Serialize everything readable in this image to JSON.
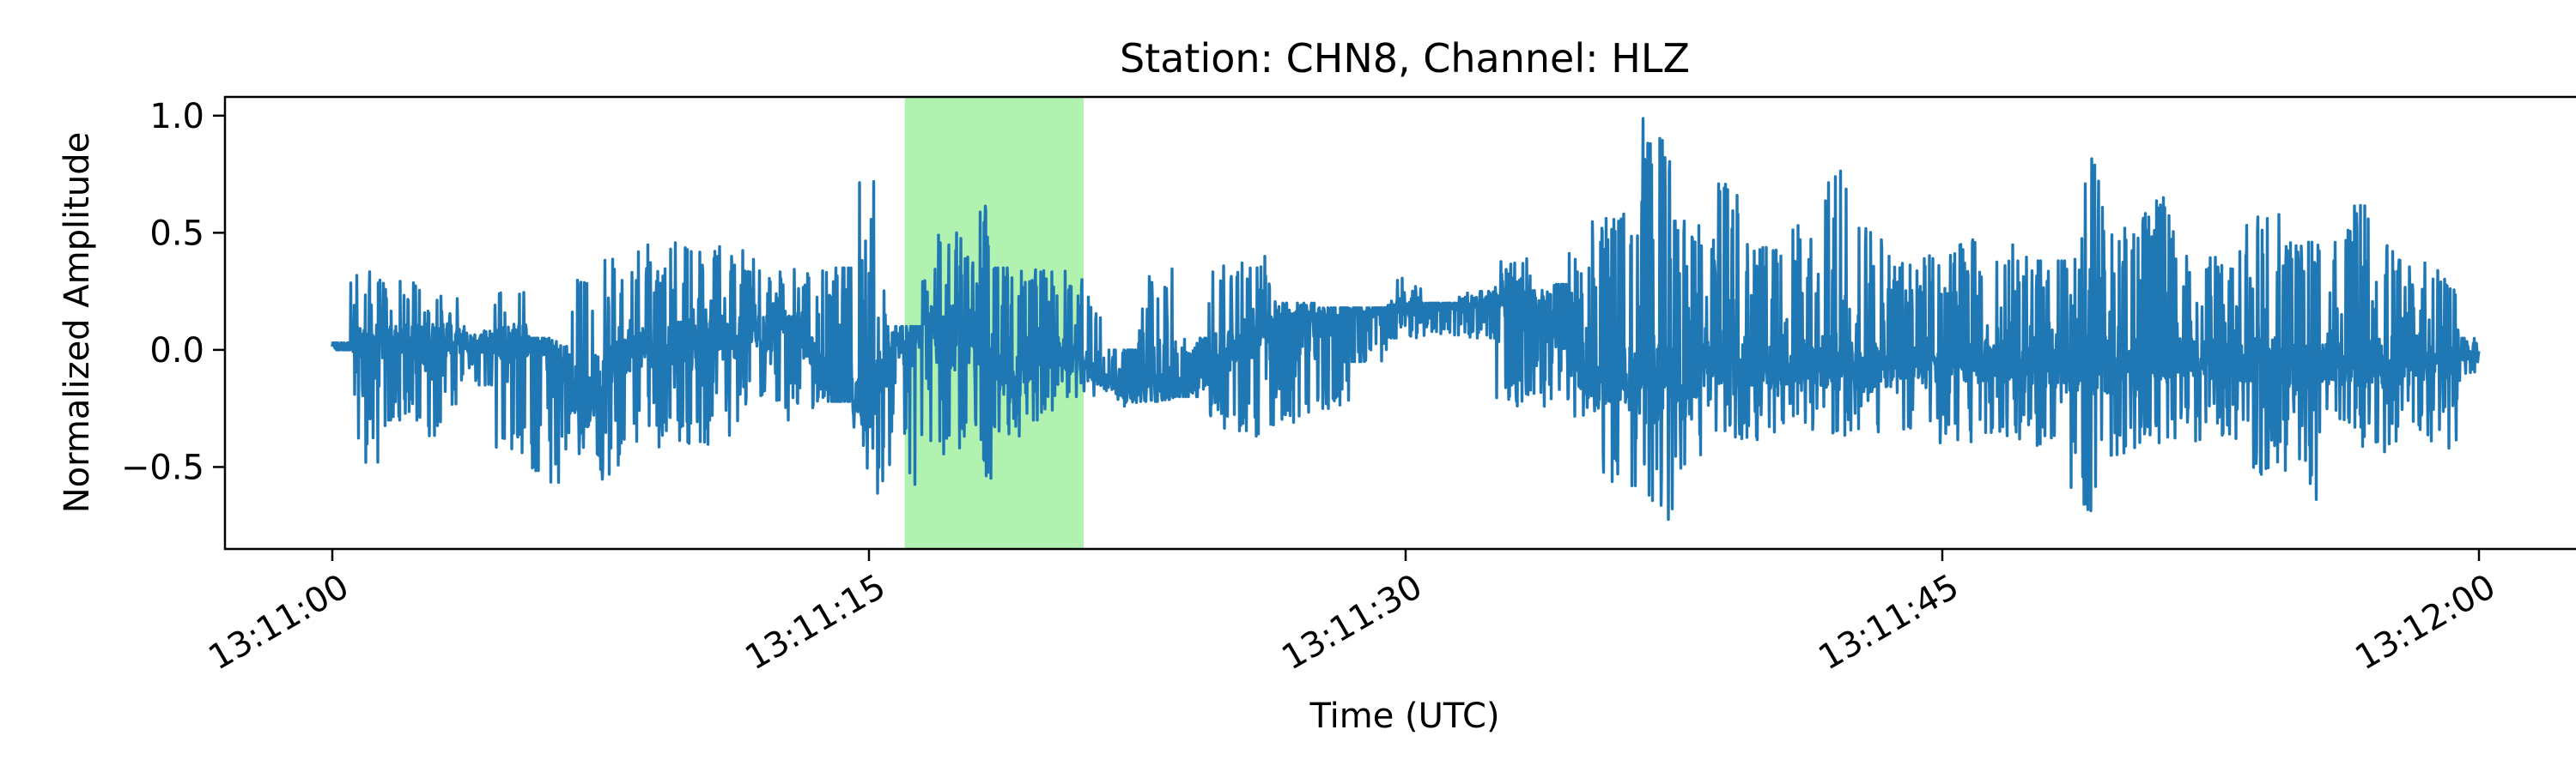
{
  "chart_data": {
    "type": "line",
    "title": "Station: CHN8, Channel: HLZ",
    "xlabel": "Time (UTC)",
    "ylabel": "Normalized Amplitude",
    "x_range": [
      "13:10:57",
      "13:12:03"
    ],
    "ylim": [
      -0.85,
      1.08
    ],
    "x_ticks": [
      "13:11:00",
      "13:11:15",
      "13:11:30",
      "13:11:45",
      "13:12:00"
    ],
    "y_ticks": [
      1.0,
      0.5,
      0.0,
      -0.5
    ],
    "y_tick_labels": [
      "1.0",
      "0.5",
      "0.0",
      "−0.5"
    ],
    "grid": false,
    "legend": "none",
    "highlight": {
      "from": "13:11:16",
      "to": "13:11:21",
      "color": "#b2f2b0"
    },
    "series": [
      {
        "color": "#1f77b4",
        "x": [
          "13:11:00",
          "13:11:01",
          "13:11:02",
          "13:11:03",
          "13:11:04",
          "13:11:05",
          "13:11:06",
          "13:11:07",
          "13:11:08",
          "13:11:09",
          "13:11:10",
          "13:11:11",
          "13:11:12",
          "13:11:13",
          "13:11:14",
          "13:11:15",
          "13:11:16",
          "13:11:17",
          "13:11:18",
          "13:11:19",
          "13:11:20",
          "13:11:21",
          "13:11:22",
          "13:11:23",
          "13:11:24",
          "13:11:25",
          "13:11:26",
          "13:11:27",
          "13:11:28",
          "13:11:29",
          "13:11:30",
          "13:11:31",
          "13:11:32",
          "13:11:33",
          "13:11:34",
          "13:11:35",
          "13:11:36",
          "13:11:37",
          "13:11:38",
          "13:11:39",
          "13:11:40",
          "13:11:41",
          "13:11:42",
          "13:11:43",
          "13:11:44",
          "13:11:45",
          "13:11:46",
          "13:11:47",
          "13:11:48",
          "13:11:49",
          "13:11:50",
          "13:11:51",
          "13:11:52",
          "13:11:53",
          "13:11:54",
          "13:11:55",
          "13:11:56",
          "13:11:57",
          "13:11:58",
          "13:11:59",
          "13:12:00"
        ],
        "max": [
          0.03,
          0.35,
          0.3,
          0.25,
          0.1,
          0.25,
          0.05,
          0.35,
          0.4,
          0.45,
          0.47,
          0.45,
          0.4,
          0.35,
          0.35,
          0.8,
          0.1,
          0.5,
          0.68,
          0.35,
          0.4,
          0.3,
          0.0,
          0.35,
          0.05,
          0.38,
          0.4,
          0.2,
          0.18,
          0.18,
          0.32,
          0.2,
          0.25,
          0.4,
          0.28,
          0.55,
          0.58,
          1.0,
          0.55,
          0.72,
          0.45,
          0.55,
          0.82,
          0.52,
          0.4,
          0.45,
          0.5,
          0.45,
          0.38,
          0.86,
          0.52,
          0.68,
          0.4,
          0.42,
          0.6,
          0.46,
          0.55,
          0.65,
          0.42,
          0.35,
          0.05
        ],
        "min": [
          0.0,
          -0.52,
          -0.3,
          -0.4,
          -0.15,
          -0.45,
          -0.58,
          -0.45,
          -0.6,
          -0.42,
          -0.4,
          -0.48,
          -0.25,
          -0.3,
          -0.22,
          -0.65,
          -0.6,
          -0.45,
          -0.55,
          -0.42,
          -0.3,
          -0.2,
          -0.25,
          -0.22,
          -0.2,
          -0.38,
          -0.38,
          -0.32,
          -0.25,
          -0.05,
          0.05,
          0.05,
          0.05,
          -0.25,
          -0.25,
          -0.3,
          -0.58,
          -0.77,
          -0.55,
          -0.4,
          -0.42,
          -0.35,
          -0.42,
          -0.38,
          -0.35,
          -0.4,
          -0.4,
          -0.38,
          -0.45,
          -0.7,
          -0.45,
          -0.4,
          -0.4,
          -0.38,
          -0.55,
          -0.66,
          -0.35,
          -0.45,
          -0.4,
          -0.45,
          -0.1
        ],
        "base": [
          0.02,
          0.03,
          0.04,
          0.05,
          0.03,
          0.04,
          0.04,
          -0.28,
          0.0,
          0.02,
          0.04,
          0.05,
          0.06,
          0.08,
          -0.22,
          -0.22,
          0.09,
          0.1,
          0.05,
          -0.15,
          0.0,
          -0.05,
          -0.18,
          -0.18,
          -0.18,
          0.0,
          0.1,
          0.15,
          0.16,
          0.17,
          0.18,
          0.2,
          0.2,
          0.25,
          0.15,
          -0.15,
          -0.1,
          -0.15,
          -0.1,
          -0.05,
          -0.08,
          -0.05,
          -0.05,
          -0.1,
          -0.05,
          -0.08,
          -0.05,
          -0.05,
          -0.08,
          -0.05,
          -0.08,
          -0.05,
          -0.03,
          -0.05,
          -0.05,
          -0.08,
          -0.05,
          -0.05,
          -0.08,
          -0.05,
          0.0
        ]
      }
    ]
  }
}
